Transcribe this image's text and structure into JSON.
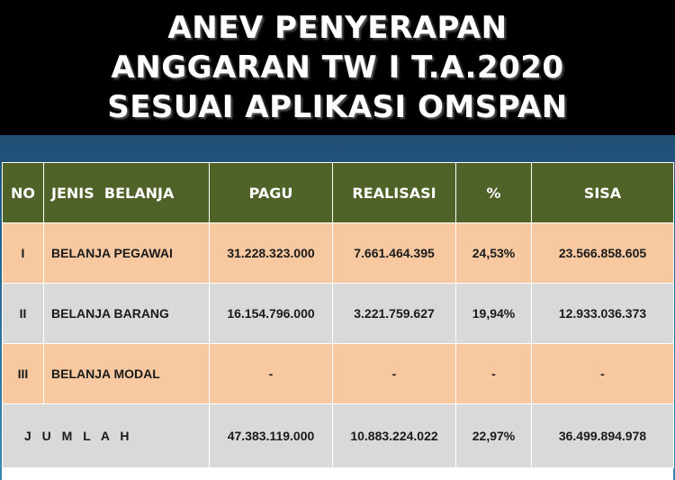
{
  "title": {
    "line1": "ANEV PENYERAPAN",
    "line2": "ANGGARAN TW I T.A.2020",
    "line3": "SESUAI APLIKASI OMSPAN"
  },
  "table": {
    "headers": [
      "NO",
      "JENIS  BELANJA",
      "PAGU",
      "REALISASI",
      "%",
      "SISA"
    ],
    "rows": [
      {
        "no": "I",
        "jenis": "BELANJA PEGAWAI",
        "pagu": "31.228.323.000",
        "realisasi": "7.661.464.395",
        "persen": "24,53%",
        "sisa": "23.566.858.605"
      },
      {
        "no": "II",
        "jenis": "BELANJA BARANG",
        "pagu": "16.154.796.000",
        "realisasi": "3.221.759.627",
        "persen": "19,94%",
        "sisa": "12.933.036.373"
      },
      {
        "no": "III",
        "jenis": "BELANJA MODAL",
        "pagu": "-",
        "realisasi": "-",
        "persen": "-",
        "sisa": "-"
      }
    ],
    "total": {
      "label": "J U M L A H",
      "pagu": "47.383.119.000",
      "realisasi": "10.883.224.022",
      "persen": "22,97%",
      "sisa": "36.499.894.978"
    }
  },
  "colors": {
    "title_background": "#000000",
    "header_background": "#4f6228",
    "row_peach": "#f8c9a1",
    "row_grey": "#d9d9d9",
    "slide_background": "#2b6b97"
  }
}
